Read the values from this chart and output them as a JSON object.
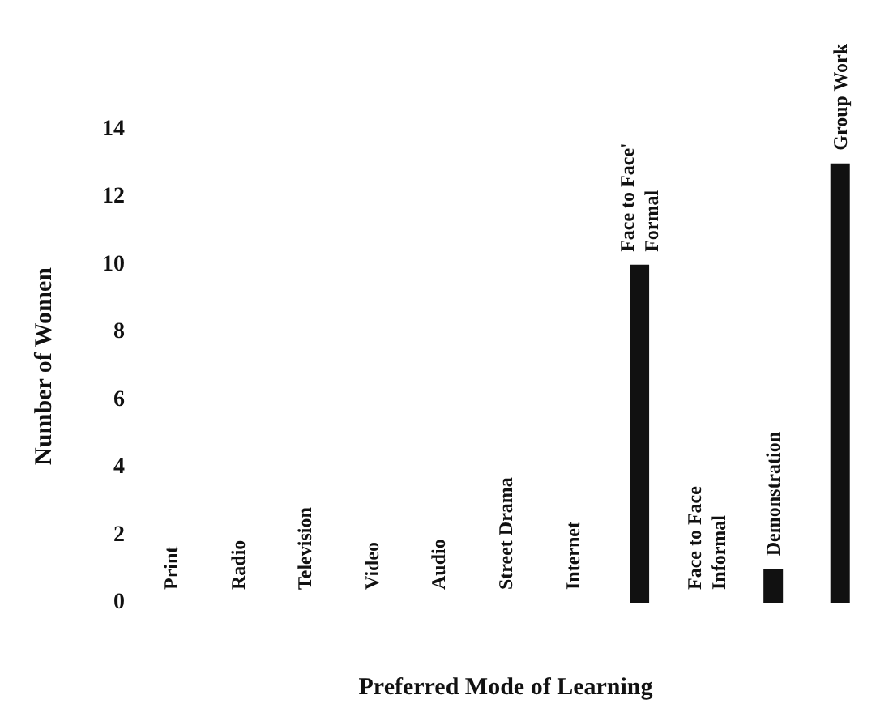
{
  "chart_data": {
    "type": "bar",
    "xlabel": "Preferred Mode of Learning",
    "ylabel": "Number of Women",
    "categories": [
      "Print",
      "Radio",
      "Television",
      "Video",
      "Audio",
      "Street Drama",
      "Internet",
      "Face to Face' Formal",
      "Face to Face Informal",
      "Demonstration",
      "Group Work"
    ],
    "values": [
      0,
      0,
      0,
      0,
      0,
      0,
      0,
      10,
      0,
      1,
      13
    ],
    "color": "#111111",
    "ylim": [
      0,
      14
    ],
    "yticks": [
      0,
      2,
      4,
      6,
      8,
      10,
      12,
      14
    ],
    "grid": false
  }
}
